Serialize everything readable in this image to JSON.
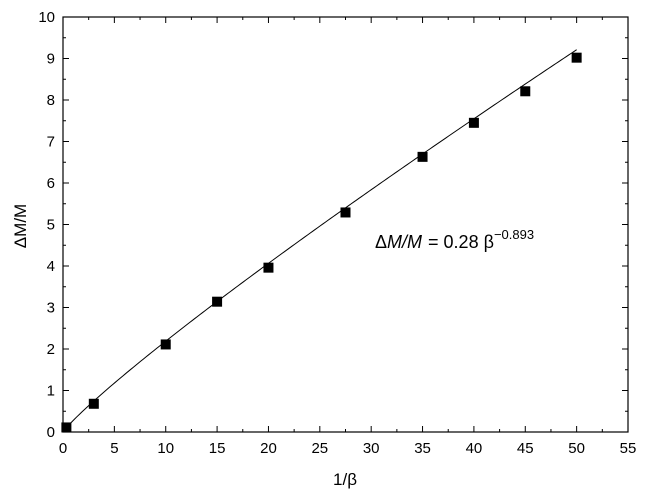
{
  "chart_data": {
    "type": "scatter",
    "xlabel": "1/β",
    "ylabel": "ΔM/M",
    "xlim": [
      0,
      55
    ],
    "ylim": [
      0,
      10
    ],
    "x_ticks": [
      "0",
      "5",
      "10",
      "15",
      "20",
      "25",
      "30",
      "35",
      "40",
      "45",
      "50",
      "55"
    ],
    "y_ticks": [
      "0",
      "1",
      "2",
      "3",
      "4",
      "5",
      "6",
      "7",
      "8",
      "9",
      "10"
    ],
    "grid": false,
    "series": [
      {
        "marker": "square",
        "color": "#000000",
        "x": [
          0.33,
          3,
          10,
          15,
          20,
          27.5,
          35,
          40,
          45,
          50
        ],
        "y": [
          0.11,
          0.68,
          2.11,
          3.14,
          3.96,
          5.29,
          6.63,
          7.45,
          8.21,
          9.02
        ]
      }
    ],
    "fit": {
      "coefficient": 0.28,
      "exponent": -0.893,
      "x_range": [
        0.1,
        50
      ]
    },
    "annotation": {
      "delta": "Δ",
      "ratio": "M/M",
      "equals": "= 0.28 β",
      "exponent": "−0.893"
    }
  }
}
